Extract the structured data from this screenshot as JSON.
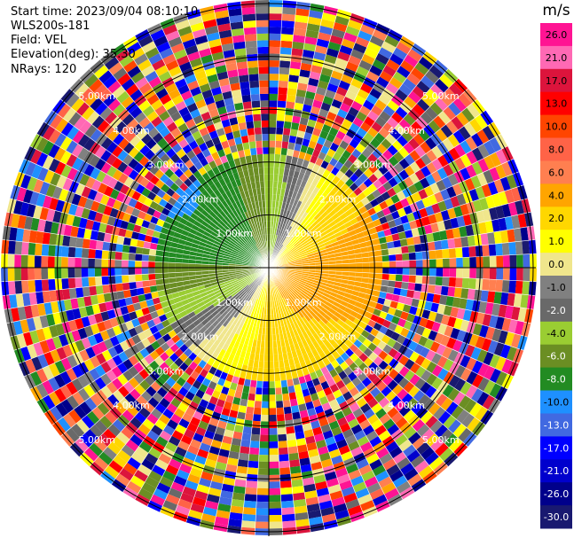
{
  "header": {
    "start_time": "Start time: 2023/09/04 08:10:10",
    "instrument": "WLS200s-181",
    "field": "Field: VEL",
    "elevation": "Elevation(deg): 35.30",
    "nrays": "NRays: 120"
  },
  "chart_data": {
    "type": "ppi",
    "field": "VEL",
    "unit": "m/s",
    "nrays": 120,
    "elevation_deg": 35.3,
    "max_range_km": 5.0,
    "valid_range_km": 2.1,
    "range_ring_labels": [
      "1.00km",
      "2.00km",
      "3.00km",
      "4.00km",
      "5.00km"
    ],
    "colorbar": {
      "title": "m/s",
      "ticks": [
        "26.0",
        "21.0",
        "17.0",
        "13.0",
        "10.0",
        "8.0",
        "6.0",
        "4.0",
        "2.0",
        "1.0",
        "0.0",
        "-1.0",
        "-2.0",
        "-4.0",
        "-6.0",
        "-8.0",
        "-10.0",
        "-13.0",
        "-17.0",
        "-21.0",
        "-26.0",
        "-30.0"
      ],
      "colors": [
        "#ff1493",
        "#ff69b4",
        "#dc143c",
        "#ff0000",
        "#ff4500",
        "#ff6347",
        "#ff7f50",
        "#ffa500",
        "#ffd700",
        "#ffff00",
        "#f0e68c",
        "#808080",
        "#696969",
        "#9acd32",
        "#6b8e23",
        "#228b22",
        "#1e90ff",
        "#4169e1",
        "#0000ff",
        "#0000cd",
        "#00008b",
        "#191970"
      ]
    }
  }
}
